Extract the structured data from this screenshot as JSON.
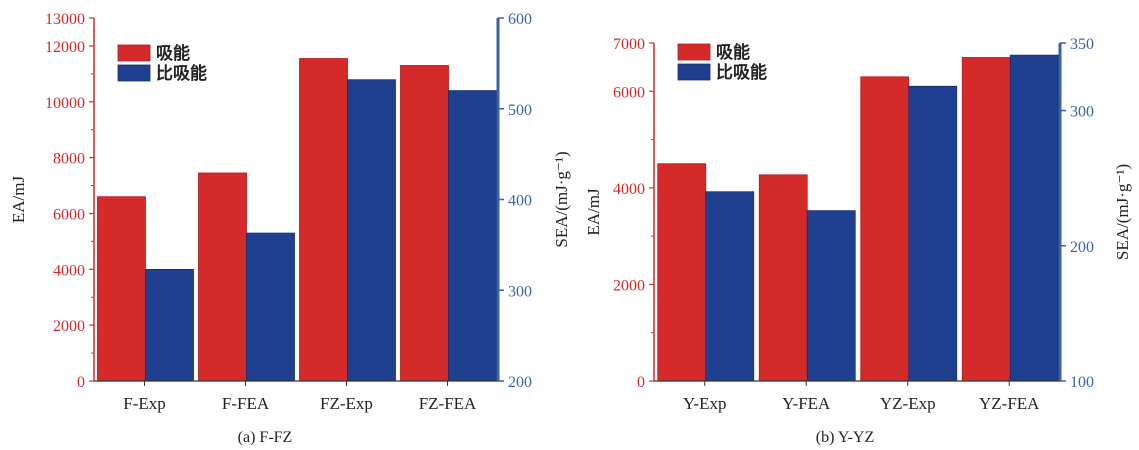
{
  "colors": {
    "ea": "#d42a2a",
    "sea": "#1f3f8f",
    "ea_axis": "#d42a2a",
    "sea_axis": "#3a62a8",
    "text": "#222222"
  },
  "legend": {
    "ea_label": "吸能",
    "sea_label": "比吸能",
    "placement": "top-left"
  },
  "chart_data": [
    {
      "type": "bar",
      "caption": "(a) F-FZ",
      "categories": [
        "F-Exp",
        "F-FEA",
        "FZ-Exp",
        "FZ-FEA"
      ],
      "ylabel_left": "EA/mJ",
      "ylabel_right": "SEA/(mJ·g⁻¹)",
      "ylim_left": [
        0,
        13000
      ],
      "ylim_right": [
        200,
        600
      ],
      "left_ticks": [
        0,
        2000,
        4000,
        6000,
        8000,
        10000,
        12000,
        13000
      ],
      "right_ticks": [
        200,
        300,
        400,
        500,
        600
      ],
      "series": [
        {
          "name": "吸能",
          "axis": "left",
          "values": [
            6600,
            7450,
            11550,
            11300
          ]
        },
        {
          "name": "比吸能",
          "axis": "right",
          "values": [
            323,
            363,
            532,
            520
          ]
        }
      ]
    },
    {
      "type": "bar",
      "caption": "(b) Y-YZ",
      "categories": [
        "Y-Exp",
        "Y-FEA",
        "YZ-Exp",
        "YZ-FEA"
      ],
      "ylabel_left": "EA/mJ",
      "ylabel_right": "SEA/(mJ·g⁻¹)",
      "ylim_left": [
        0,
        7000
      ],
      "ylim_right": [
        100,
        350
      ],
      "left_ticks": [
        0,
        2000,
        4000,
        6000,
        7000
      ],
      "right_ticks": [
        100,
        200,
        300,
        350
      ],
      "series": [
        {
          "name": "吸能",
          "axis": "left",
          "values": [
            4500,
            4270,
            6300,
            6700
          ]
        },
        {
          "name": "比吸能",
          "axis": "right",
          "values": [
            240,
            226,
            318,
            341
          ]
        }
      ]
    }
  ]
}
